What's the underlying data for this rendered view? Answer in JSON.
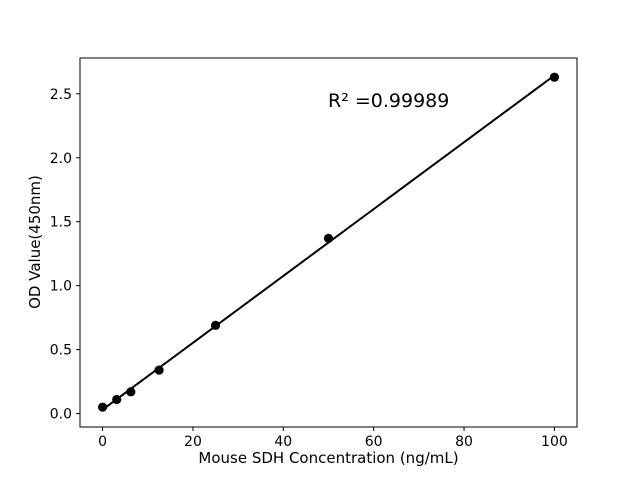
{
  "chart_data": {
    "type": "scatter",
    "title": "",
    "xlabel": "Mouse SDH Concentration (ng/mL)",
    "ylabel": "OD Value(450nm)",
    "annotation": "R² =0.99989",
    "x": [
      0,
      3.125,
      6.25,
      12.5,
      25,
      50,
      100
    ],
    "y": [
      0.05,
      0.11,
      0.17,
      0.34,
      0.69,
      1.37,
      2.63
    ],
    "fit_line": {
      "type": "linear",
      "r_squared": 0.99989
    },
    "xlim": [
      -5,
      105
    ],
    "ylim": [
      -0.105,
      2.78
    ],
    "x_ticks": [
      0,
      20,
      40,
      60,
      80,
      100
    ],
    "x_tick_labels": [
      "0",
      "20",
      "40",
      "60",
      "80",
      "100"
    ],
    "y_ticks": [
      0.0,
      0.5,
      1.0,
      1.5,
      2.0,
      2.5
    ],
    "y_tick_labels": [
      "0.0",
      "0.5",
      "1.0",
      "1.5",
      "2.0",
      "2.5"
    ],
    "grid": false,
    "legend": null,
    "colors": {
      "marker": "#000000",
      "line": "#000000",
      "axes": "#000000",
      "background": "#ffffff"
    }
  }
}
